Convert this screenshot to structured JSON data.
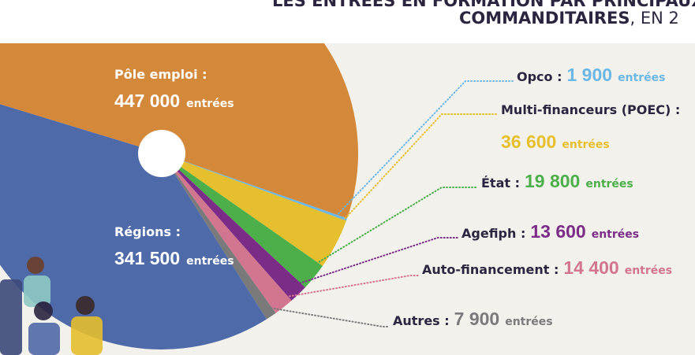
{
  "chart_data": {
    "type": "pie",
    "title_line1": "LES ENTRÉES EN FORMATION PAR PRINCIPAUX",
    "title_bold": "COMMANDITAIRES",
    "title_rest": ", EN 2",
    "unit": "entrées",
    "categories": [
      "Pôle emploi :",
      "Opco :",
      "Multi-financeurs (POEC) :",
      "État :",
      "Agefiph :",
      "Auto-financement :",
      "Autres :",
      "Régions :"
    ],
    "values": [
      447000,
      1900,
      36600,
      19800,
      13600,
      14400,
      7900,
      341500
    ],
    "value_labels": [
      "447 000",
      "1 900",
      "36 600",
      "19 800",
      "13 600",
      "14 400",
      "7 900",
      "341 500"
    ],
    "colors": [
      "#d4893a",
      "#6bb7e6",
      "#e5bf2e",
      "#4caf4a",
      "#7b2c87",
      "#d2758f",
      "#7a7a7a",
      "#4f6aa8"
    ]
  }
}
